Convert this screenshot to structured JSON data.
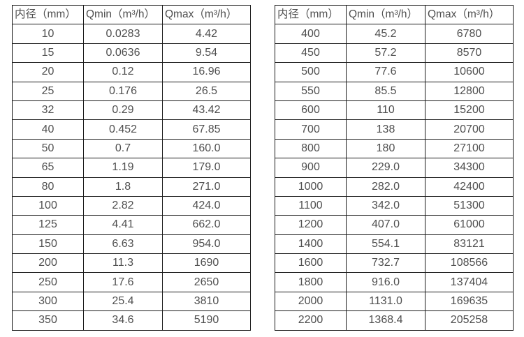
{
  "colors": {
    "border": "#1a1a1a",
    "text": "#4f4f4f",
    "background": "#ffffff"
  },
  "chart_data": [
    {
      "type": "table",
      "title": "flow-spec-small-diameters",
      "headers": [
        "内径（mm）",
        "Qmin（m³/h）",
        "Qmax（m³/h）"
      ],
      "rows": [
        [
          "10",
          "0.0283",
          "4.42"
        ],
        [
          "15",
          "0.0636",
          "9.54"
        ],
        [
          "20",
          "0.12",
          "16.96"
        ],
        [
          "25",
          "0.176",
          "26.5"
        ],
        [
          "32",
          "0.29",
          "43.42"
        ],
        [
          "40",
          "0.452",
          "67.85"
        ],
        [
          "50",
          "0.7",
          "160.0"
        ],
        [
          "65",
          "1.19",
          "179.0"
        ],
        [
          "80",
          "1.8",
          "271.0"
        ],
        [
          "100",
          "2.82",
          "424.0"
        ],
        [
          "125",
          "4.41",
          "662.0"
        ],
        [
          "150",
          "6.63",
          "954.0"
        ],
        [
          "200",
          "11.3",
          "1690"
        ],
        [
          "250",
          "17.6",
          "2650"
        ],
        [
          "300",
          "25.4",
          "3810"
        ],
        [
          "350",
          "34.6",
          "5190"
        ]
      ]
    },
    {
      "type": "table",
      "title": "flow-spec-large-diameters",
      "headers": [
        "内径（mm）",
        "Qmin（m³/h）",
        "Qmax（m³/h）"
      ],
      "rows": [
        [
          "400",
          "45.2",
          "6780"
        ],
        [
          "450",
          "57.2",
          "8570"
        ],
        [
          "500",
          "77.6",
          "10600"
        ],
        [
          "550",
          "85.5",
          "12800"
        ],
        [
          "600",
          "110",
          "15200"
        ],
        [
          "700",
          "138",
          "20700"
        ],
        [
          "800",
          "180",
          "27100"
        ],
        [
          "900",
          "229.0",
          "34300"
        ],
        [
          "1000",
          "282.0",
          "42400"
        ],
        [
          "1100",
          "342.0",
          "51300"
        ],
        [
          "1200",
          "407.0",
          "61000"
        ],
        [
          "1400",
          "554.1",
          "83121"
        ],
        [
          "1600",
          "732.7",
          "108566"
        ],
        [
          "1800",
          "916.0",
          "137404"
        ],
        [
          "2000",
          "1131.0",
          "169635"
        ],
        [
          "2200",
          "1368.4",
          "205258"
        ]
      ]
    }
  ]
}
